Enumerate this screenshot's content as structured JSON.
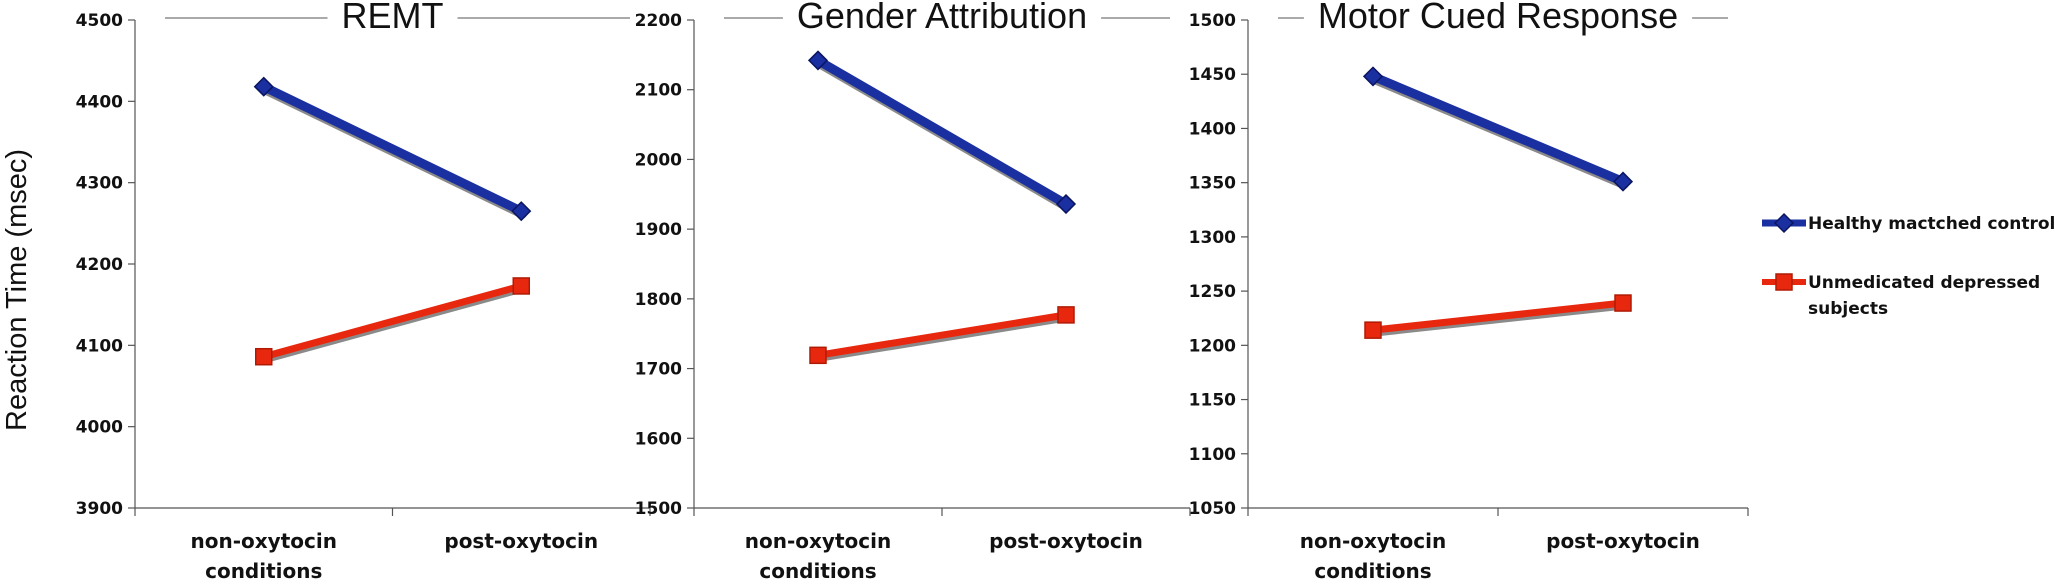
{
  "ylabel": "Reaction  Time (msec)",
  "legend": [
    {
      "label_lines": [
        "Healthy mactched controls"
      ],
      "color": "#1a2fa0",
      "marker": "diamond"
    },
    {
      "label_lines": [
        "Unmedicated depressed",
        "subjects"
      ],
      "color": "#e8280e",
      "marker": "square"
    }
  ],
  "chart_data": [
    {
      "type": "line",
      "title": "REMT",
      "categories": [
        [
          "non-oxytocin",
          "conditions"
        ],
        [
          "post-oxytocin"
        ]
      ],
      "ylim": [
        3900,
        4500
      ],
      "yticks": [
        3900,
        4000,
        4100,
        4200,
        4300,
        4400,
        4500
      ],
      "series": [
        {
          "name": "Healthy mactched controls",
          "values": [
            4418,
            4265
          ]
        },
        {
          "name": "Unmedicated depressed subjects",
          "values": [
            4086,
            4173
          ]
        }
      ]
    },
    {
      "type": "line",
      "title": "Gender Attribution",
      "categories": [
        [
          "non-oxytocin",
          "conditions"
        ],
        [
          "post-oxytocin"
        ]
      ],
      "ylim": [
        1500,
        2200
      ],
      "yticks": [
        1500,
        1600,
        1700,
        1800,
        1900,
        2000,
        2100,
        2200
      ],
      "series": [
        {
          "name": "Healthy mactched controls",
          "values": [
            2142,
            1936
          ]
        },
        {
          "name": "Unmedicated depressed subjects",
          "values": [
            1719,
            1777
          ]
        }
      ]
    },
    {
      "type": "line",
      "title": "Motor Cued Response",
      "categories": [
        [
          "non-oxytocin",
          "conditions"
        ],
        [
          "post-oxytocin"
        ]
      ],
      "ylim": [
        1050,
        1500
      ],
      "yticks": [
        1050,
        1100,
        1150,
        1200,
        1250,
        1300,
        1350,
        1400,
        1450,
        1500
      ],
      "series": [
        {
          "name": "Healthy mactched controls",
          "values": [
            1448,
            1351
          ]
        },
        {
          "name": "Unmedicated depressed subjects",
          "values": [
            1214,
            1239
          ]
        }
      ]
    }
  ]
}
